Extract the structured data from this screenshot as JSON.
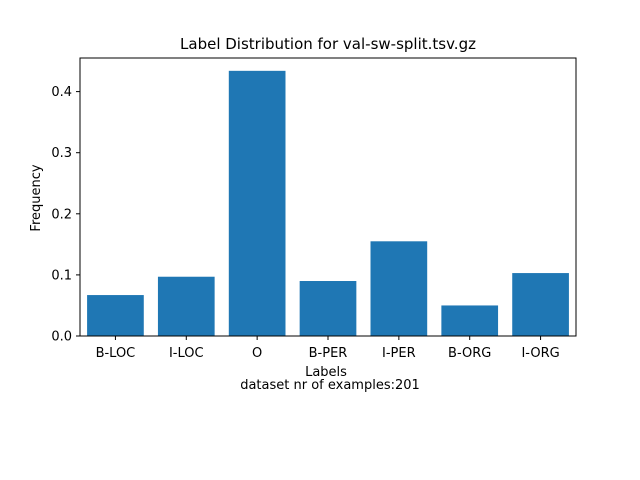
{
  "chart_data": {
    "type": "bar",
    "title": "Label Distribution for val-sw-split.tsv.gz",
    "xlabel": "Labels",
    "ylabel": "Frequency",
    "caption": "dataset nr of examples:201",
    "categories": [
      "B-LOC",
      "I-LOC",
      "O",
      "B-PER",
      "I-PER",
      "B-ORG",
      "I-ORG"
    ],
    "values": [
      0.067,
      0.097,
      0.434,
      0.09,
      0.155,
      0.05,
      0.103
    ],
    "ylim": [
      0,
      0.455
    ],
    "yticks": [
      0.0,
      0.1,
      0.2,
      0.3,
      0.4
    ],
    "ytick_labels": [
      "0.0",
      "0.1",
      "0.2",
      "0.3",
      "0.4"
    ],
    "bar_color": "#1f77b4",
    "grid": false,
    "legend": false
  }
}
